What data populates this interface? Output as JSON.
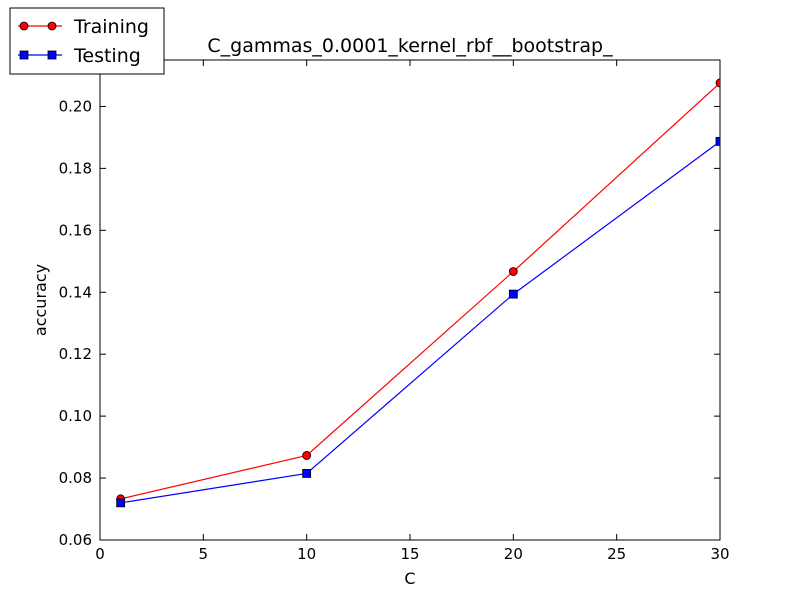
{
  "chart_data": {
    "type": "line",
    "title": "C_gammas_0.0001_kernel_rbf__bootstrap_",
    "xlabel": "C",
    "ylabel": "accuracy",
    "xlim": [
      0,
      30
    ],
    "ylim": [
      0.06,
      0.215
    ],
    "xticks": [
      0,
      5,
      10,
      15,
      20,
      25,
      30
    ],
    "xtick_labels": [
      "0",
      "5",
      "10",
      "15",
      "20",
      "25",
      "30"
    ],
    "yticks": [
      0.06,
      0.08,
      0.1,
      0.12,
      0.14,
      0.16,
      0.18,
      0.2
    ],
    "ytick_labels": [
      "0.06",
      "0.08",
      "0.10",
      "0.12",
      "0.14",
      "0.16",
      "0.18",
      "0.20"
    ],
    "grid": false,
    "legend_position": "top-left",
    "x": [
      1,
      10,
      20,
      30
    ],
    "series": [
      {
        "name": "Training",
        "values": [
          0.0733,
          0.0873,
          0.1467,
          0.2076
        ],
        "color": "#ff0000",
        "marker": "circle"
      },
      {
        "name": "Testing",
        "values": [
          0.072,
          0.0815,
          0.1394,
          0.1887
        ],
        "color": "#0000ff",
        "marker": "square"
      }
    ]
  }
}
